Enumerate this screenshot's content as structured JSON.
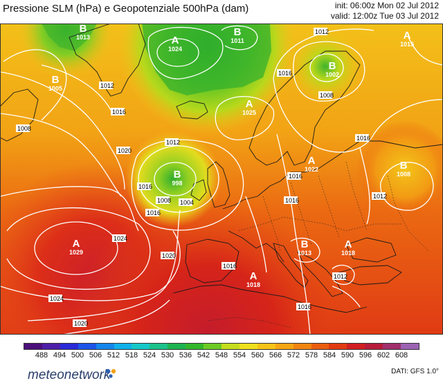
{
  "header": {
    "title": "Pressione SLM (hPa) e Geopotenziale 500hPa (dam)",
    "init": "init: 06:00z Mon 02 Jul 2012",
    "valid": "valid: 12:00z Tue 03 Jul 2012"
  },
  "legend": {
    "values": [
      "488",
      "494",
      "500",
      "506",
      "512",
      "518",
      "524",
      "530",
      "536",
      "542",
      "548",
      "554",
      "560",
      "566",
      "572",
      "578",
      "584",
      "590",
      "596",
      "602",
      "608"
    ],
    "colors": [
      "#4b0f7a",
      "#4e1fa8",
      "#2a2ad8",
      "#1c55e8",
      "#1486ec",
      "#12b0ea",
      "#17c8c8",
      "#1bc28a",
      "#20b450",
      "#34b72b",
      "#6ccb25",
      "#c6dd1c",
      "#f0e01e",
      "#f7c416",
      "#f5a613",
      "#f18511",
      "#ea5e10",
      "#e23a12",
      "#d11f22",
      "#b81b3a",
      "#a0306c",
      "#9c62b4"
    ]
  },
  "pressure_centers": [
    {
      "type": "A",
      "value": "1024"
    },
    {
      "type": "B",
      "value": "1011"
    },
    {
      "type": "B",
      "value": "1002"
    },
    {
      "type": "A",
      "value": "1015"
    },
    {
      "type": "A",
      "value": "1025"
    },
    {
      "type": "B",
      "value": "998"
    },
    {
      "type": "A",
      "value": "1022"
    },
    {
      "type": "B",
      "value": "1008"
    },
    {
      "type": "A",
      "value": "1029"
    },
    {
      "type": "A",
      "value": "1018"
    },
    {
      "type": "B",
      "value": "1013"
    },
    {
      "type": "A",
      "value": "1018"
    },
    {
      "type": "B",
      "value": "1013"
    },
    {
      "type": "B",
      "value": "1005"
    }
  ],
  "isobar_labels": [
    "1012",
    "1012",
    "1016",
    "1008",
    "1020",
    "1016",
    "1012",
    "1008",
    "1016",
    "1012",
    "1008",
    "1004",
    "1016",
    "1016",
    "1024",
    "1020",
    "1024",
    "1020",
    "1016",
    "1016",
    "1012",
    "1016",
    "1016"
  ],
  "footer": {
    "brand": "meteonetwork",
    "source": "DATI:  GFS  1.0°"
  }
}
